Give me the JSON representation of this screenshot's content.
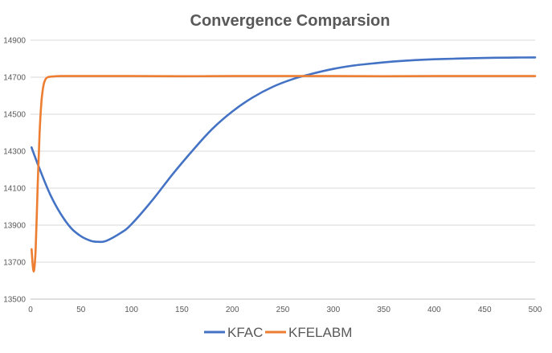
{
  "chart_data": {
    "type": "line",
    "title": "Convergence Comparsion",
    "xlabel": "",
    "ylabel": "",
    "xlim": [
      0,
      500
    ],
    "ylim": [
      13500,
      14900
    ],
    "x_ticks": [
      0,
      50,
      100,
      150,
      200,
      250,
      300,
      350,
      400,
      450,
      500
    ],
    "y_ticks": [
      13500,
      13700,
      13900,
      14100,
      14300,
      14500,
      14700,
      14900
    ],
    "grid": "horizontal",
    "legend_position": "bottom",
    "series": [
      {
        "name": "KFAC",
        "color": "#4472C4",
        "x": [
          1,
          10,
          20,
          30,
          40,
          50,
          60,
          67,
          75,
          90,
          100,
          120,
          140,
          160,
          180,
          200,
          220,
          240,
          260,
          280,
          300,
          320,
          340,
          360,
          380,
          400,
          420,
          440,
          460,
          480,
          500
        ],
        "y": [
          14320,
          14190,
          14060,
          13960,
          13885,
          13840,
          13815,
          13810,
          13815,
          13860,
          13905,
          14030,
          14170,
          14300,
          14420,
          14515,
          14590,
          14648,
          14690,
          14720,
          14745,
          14763,
          14775,
          14785,
          14792,
          14797,
          14800,
          14803,
          14805,
          14806,
          14807
        ]
      },
      {
        "name": "KFELABM",
        "color": "#ED7D31",
        "x": [
          1,
          3,
          5,
          7,
          9,
          11,
          13,
          15,
          17,
          20,
          25,
          30,
          50,
          100,
          150,
          200,
          250,
          300,
          350,
          400,
          450,
          500
        ],
        "y": [
          13770,
          13650,
          13760,
          14100,
          14400,
          14580,
          14660,
          14690,
          14700,
          14703,
          14705,
          14706,
          14706,
          14706,
          14705,
          14706,
          14706,
          14706,
          14705,
          14706,
          14706,
          14706
        ]
      }
    ]
  }
}
